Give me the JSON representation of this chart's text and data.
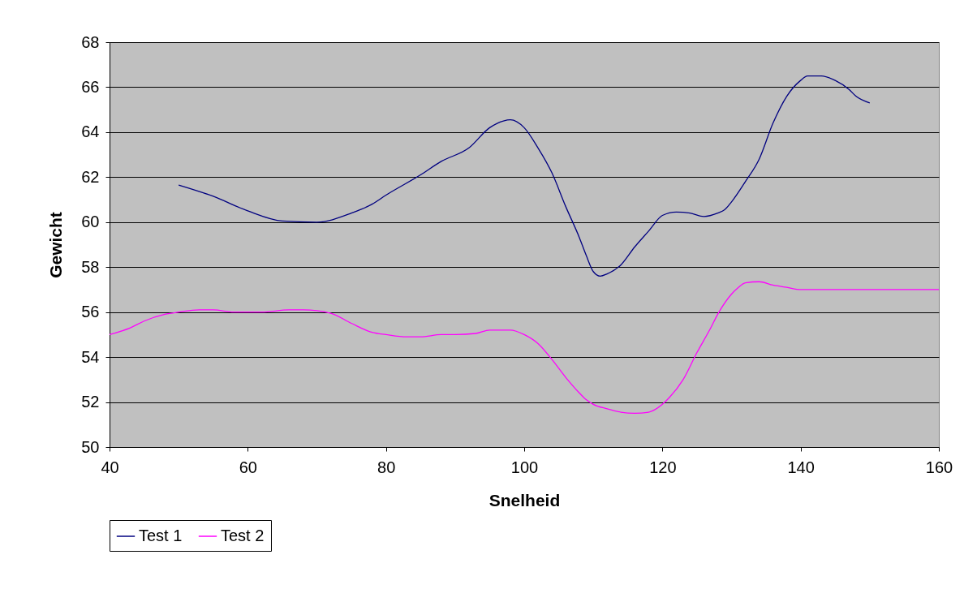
{
  "chart_data": {
    "type": "line",
    "xlabel": "Snelheid",
    "ylabel": "Gewicht",
    "xlim": [
      40,
      160
    ],
    "xticks": [
      40,
      60,
      80,
      100,
      120,
      140,
      160
    ],
    "ylim": [
      50,
      68
    ],
    "yticks": [
      50,
      52,
      54,
      56,
      58,
      60,
      62,
      64,
      66,
      68
    ],
    "grid": "y",
    "legend": "bottom",
    "series": [
      {
        "name": "Test 1",
        "color": "#000080",
        "x": [
          50,
          55,
          60,
          65,
          70,
          75,
          78,
          80,
          85,
          88,
          92,
          95,
          97,
          98,
          100,
          102,
          104,
          106,
          108,
          109,
          110,
          111,
          112,
          114,
          116,
          118,
          120,
          122,
          124,
          126,
          128,
          129,
          130,
          132,
          134,
          136,
          138,
          140,
          141,
          143,
          145,
          147,
          148,
          150
        ],
        "values": [
          61.65,
          61.15,
          60.5,
          60.05,
          60.0,
          60.4,
          60.8,
          61.2,
          62.1,
          62.7,
          63.3,
          64.2,
          64.5,
          64.55,
          64.2,
          63.3,
          62.2,
          60.7,
          59.3,
          58.5,
          57.8,
          57.6,
          57.7,
          58.1,
          58.9,
          59.6,
          60.3,
          60.45,
          60.4,
          60.25,
          60.4,
          60.55,
          60.9,
          61.8,
          62.8,
          64.4,
          65.6,
          66.3,
          66.5,
          66.5,
          66.3,
          65.9,
          65.6,
          65.3
        ]
      },
      {
        "name": "Test 2",
        "color": "#ff00ff",
        "x": [
          40,
          43,
          45,
          48,
          50,
          53,
          55,
          58,
          62,
          66,
          68,
          72,
          75,
          78,
          80,
          83,
          85,
          88,
          90,
          93,
          95,
          98,
          100,
          102,
          104,
          106,
          108,
          109,
          110,
          112,
          114,
          116,
          118,
          120,
          121,
          123,
          125,
          127,
          128,
          130,
          131,
          132,
          134,
          136,
          138,
          140,
          150,
          160
        ],
        "values": [
          55.0,
          55.3,
          55.6,
          55.9,
          56.0,
          56.1,
          56.1,
          56.0,
          56.0,
          56.1,
          56.1,
          55.95,
          55.5,
          55.1,
          55.0,
          54.9,
          54.9,
          55.0,
          55.0,
          55.05,
          55.2,
          55.2,
          55.0,
          54.6,
          53.9,
          53.1,
          52.4,
          52.1,
          51.9,
          51.7,
          51.55,
          51.5,
          51.55,
          51.9,
          52.2,
          53.0,
          54.2,
          55.3,
          55.9,
          56.8,
          57.1,
          57.3,
          57.35,
          57.2,
          57.1,
          57.0,
          57.0,
          57.0
        ]
      }
    ]
  }
}
